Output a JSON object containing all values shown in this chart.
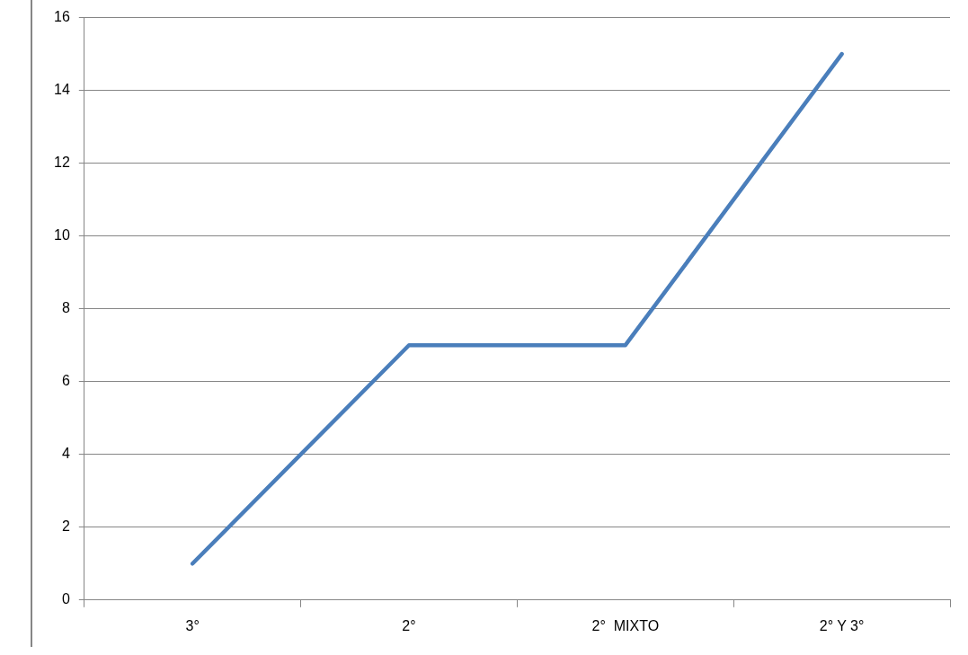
{
  "chart_data": {
    "type": "line",
    "categories": [
      "3°",
      "2°",
      "2°  MIXTO",
      "2° Y 3°"
    ],
    "series": [
      {
        "color": "#4a7ebb",
        "values": [
          1,
          7,
          7,
          15
        ]
      }
    ],
    "ylim": [
      0,
      16
    ],
    "yticks": [
      0,
      2,
      4,
      6,
      8,
      10,
      12,
      14,
      16
    ],
    "grid": "y",
    "legend": false
  }
}
